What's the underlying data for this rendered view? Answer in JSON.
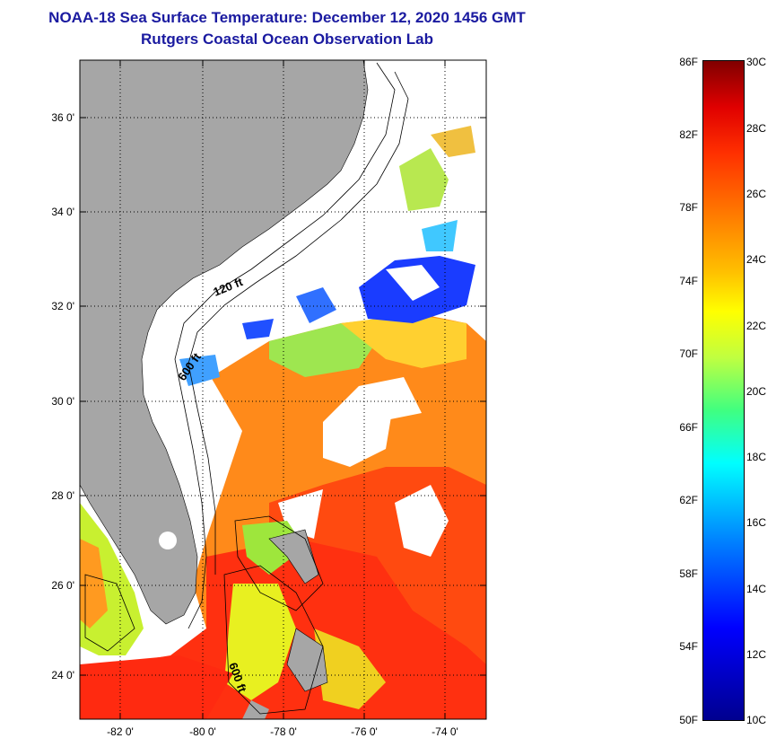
{
  "header": {
    "title": "NOAA-18 Sea Surface Temperature:  December 12, 2020 1456 GMT",
    "subtitle": "Rutgers Coastal Ocean Observation Lab"
  },
  "map": {
    "lat_labels": [
      "36 0'",
      "34 0'",
      "32 0'",
      "30 0'",
      "28 0'",
      "26 0'",
      "24 0'"
    ],
    "lon_labels": [
      "-82 0'",
      "-80 0'",
      "-78 0'",
      "-76 0'",
      "-74 0'"
    ],
    "contour_labels": [
      "120 ft",
      "600 ft",
      "600 ft"
    ],
    "colors": {
      "land": "#a6a6a6",
      "cloud": "#ffffff"
    }
  },
  "colorbar": {
    "fahrenheit": [
      "86F",
      "82F",
      "78F",
      "74F",
      "70F",
      "66F",
      "62F",
      "58F",
      "54F",
      "50F"
    ],
    "celsius": [
      "30C",
      "28C",
      "26C",
      "24C",
      "22C",
      "20C",
      "18C",
      "16C",
      "14C",
      "12C",
      "10C"
    ]
  }
}
